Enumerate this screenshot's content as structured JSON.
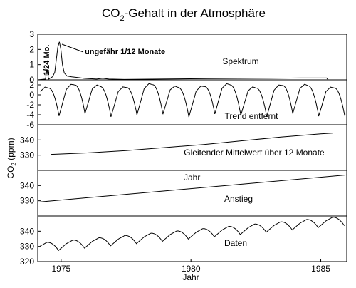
{
  "title": {
    "prefix": "CO",
    "subscript": "2",
    "suffix": "-Gehalt in der Atmosphäre"
  },
  "ylabel": {
    "prefix": "CO",
    "subscript": "2",
    "suffix": " (ppm)"
  },
  "chart_data": [
    {
      "type": "line",
      "name": "spektrum",
      "x_axis": "frequency (not printed)",
      "ylim": [
        0,
        3
      ],
      "yticks": [
        0,
        1,
        2,
        3
      ],
      "xlim": [
        0,
        100
      ],
      "points": [
        [
          0,
          0
        ],
        [
          2.5,
          0.05
        ],
        [
          3,
          0.7
        ],
        [
          3.5,
          0.05
        ],
        [
          4.8,
          0.2
        ],
        [
          5.5,
          0.5
        ],
        [
          6,
          1.3
        ],
        [
          6.5,
          2.15
        ],
        [
          7,
          2.5
        ],
        [
          7.5,
          2.0
        ],
        [
          8,
          1.0
        ],
        [
          8.6,
          0.45
        ],
        [
          9.5,
          0.25
        ],
        [
          11,
          0.2
        ],
        [
          13,
          0.15
        ],
        [
          15,
          0.1
        ],
        [
          19,
          0.05
        ],
        [
          21,
          0.1
        ],
        [
          23,
          0.05
        ],
        [
          28,
          0.03
        ],
        [
          40,
          0.05
        ],
        [
          55,
          0.08
        ],
        [
          70,
          0.1
        ],
        [
          85,
          0.12
        ],
        [
          93.5,
          0.12
        ],
        [
          94,
          0
        ]
      ],
      "label": "Spektrum",
      "annotations": [
        "1/24 Mo.",
        "ungefähr 1/12 Monate"
      ]
    },
    {
      "type": "line",
      "name": "trend-entfernt",
      "ylim": [
        -6,
        3
      ],
      "yticks": [
        -6,
        -4,
        -2,
        0,
        2
      ],
      "xlim": [
        1974.1,
        1986.0
      ],
      "x_start": 1974.2,
      "x_end": 1985.95,
      "label": "Trend entfernt"
    },
    {
      "type": "line",
      "name": "gleitender-mittelwert",
      "ylim": [
        320,
        350
      ],
      "yticks": [
        330,
        340
      ],
      "xlim": [
        1974.1,
        1986.0
      ],
      "points": [
        [
          1974.6,
          330.5
        ],
        [
          1976.0,
          331.5
        ],
        [
          1977.5,
          333.0
        ],
        [
          1979.0,
          335.0
        ],
        [
          1980.5,
          337.0
        ],
        [
          1982.0,
          339.5
        ],
        [
          1983.5,
          342.0
        ],
        [
          1985.0,
          344.0
        ],
        [
          1985.45,
          344.5
        ]
      ],
      "label": "Gleitender Mittelwert über 12 Monate"
    },
    {
      "type": "line",
      "name": "anstieg",
      "ylim": [
        320,
        350
      ],
      "yticks": [
        330,
        340
      ],
      "xlim": [
        1974.1,
        1986.0
      ],
      "points": [
        [
          1974.2,
          329.3
        ],
        [
          1986.0,
          347.0
        ]
      ],
      "label": "Anstieg",
      "annotation": "Jahr"
    },
    {
      "type": "line",
      "name": "daten",
      "ylim": [
        320,
        350
      ],
      "yticks": [
        320,
        330,
        340
      ],
      "xlim": [
        1974.1,
        1986.0
      ],
      "x_start": 1974.2,
      "x_end": 1985.95,
      "label": "Daten",
      "xticks": [
        1975,
        1980,
        1985
      ],
      "xlabel": "Jahr"
    }
  ]
}
